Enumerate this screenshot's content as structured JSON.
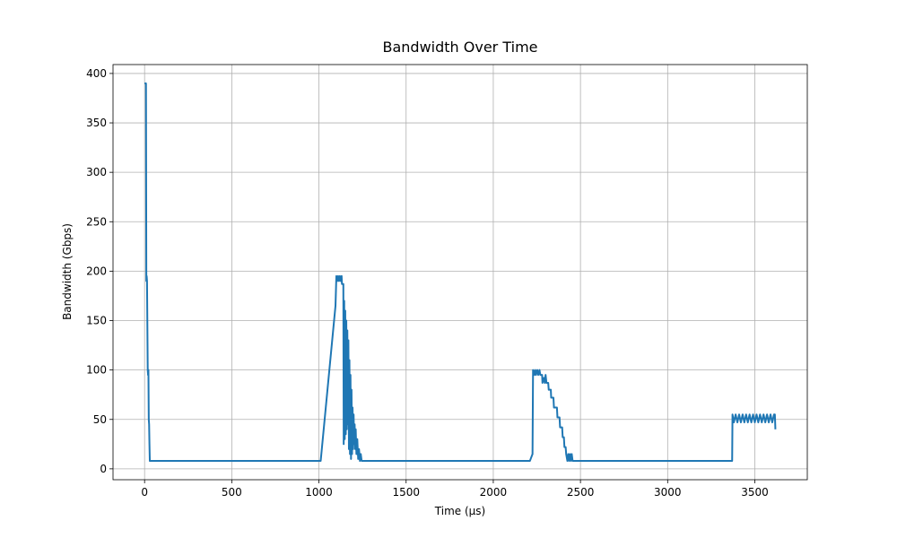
{
  "chart_data": {
    "type": "line",
    "title": "Bandwidth Over Time",
    "x_label": "Time (μs)",
    "y_label": "Bandwidth (Gbps)",
    "color": "#1f77b4",
    "grid": true,
    "xlim": [
      -181,
      3801
    ],
    "ylim": [
      -11,
      409
    ],
    "xticks": [
      0,
      500,
      1000,
      1500,
      2000,
      2500,
      3000,
      3500
    ],
    "yticks": [
      0,
      50,
      100,
      150,
      200,
      250,
      300,
      350,
      400
    ],
    "x": [
      0,
      5,
      8,
      10,
      12,
      14,
      18,
      20,
      22,
      24,
      26,
      28,
      30,
      1010,
      1095,
      1100,
      1105,
      1110,
      1115,
      1120,
      1125,
      1130,
      1132,
      1140,
      1142,
      1145,
      1148,
      1151,
      1154,
      1157,
      1160,
      1163,
      1166,
      1169,
      1172,
      1175,
      1178,
      1181,
      1184,
      1187,
      1190,
      1193,
      1196,
      1199,
      1202,
      1205,
      1208,
      1211,
      1215,
      1220,
      1225,
      1230,
      1235,
      1240,
      1245,
      2210,
      2225,
      2228,
      2235,
      2240,
      2245,
      2252,
      2258,
      2265,
      2270,
      2280,
      2282,
      2290,
      2295,
      2300,
      2305,
      2315,
      2318,
      2330,
      2332,
      2345,
      2348,
      2365,
      2368,
      2380,
      2383,
      2395,
      2398,
      2405,
      2408,
      2415,
      2418,
      2425,
      2430,
      2435,
      2440,
      2445,
      2450,
      2455,
      3370,
      3372,
      3380,
      3390,
      3400,
      3410,
      3420,
      3430,
      3440,
      3450,
      3460,
      3470,
      3480,
      3490,
      3500,
      3510,
      3520,
      3530,
      3540,
      3550,
      3560,
      3570,
      3580,
      3590,
      3600,
      3610,
      3615,
      3618
    ],
    "values": [
      390,
      390,
      390,
      190,
      195,
      190,
      100,
      95,
      100,
      50,
      45,
      25,
      8,
      8,
      165,
      195,
      190,
      195,
      190,
      195,
      190,
      195,
      187,
      187,
      25,
      170,
      30,
      160,
      35,
      150,
      40,
      140,
      45,
      130,
      20,
      110,
      15,
      95,
      10,
      80,
      15,
      62,
      20,
      55,
      25,
      45,
      20,
      40,
      15,
      30,
      10,
      20,
      8,
      15,
      8,
      8,
      15,
      100,
      95,
      100,
      95,
      100,
      95,
      100,
      95,
      95,
      87,
      92,
      87,
      95,
      87,
      87,
      80,
      80,
      72,
      72,
      62,
      62,
      52,
      52,
      42,
      42,
      32,
      32,
      22,
      22,
      15,
      8,
      15,
      8,
      15,
      8,
      15,
      8,
      8,
      55,
      47,
      55,
      47,
      55,
      47,
      55,
      47,
      55,
      47,
      55,
      47,
      55,
      47,
      55,
      47,
      55,
      47,
      55,
      47,
      55,
      47,
      55,
      47,
      55,
      55,
      40
    ]
  }
}
